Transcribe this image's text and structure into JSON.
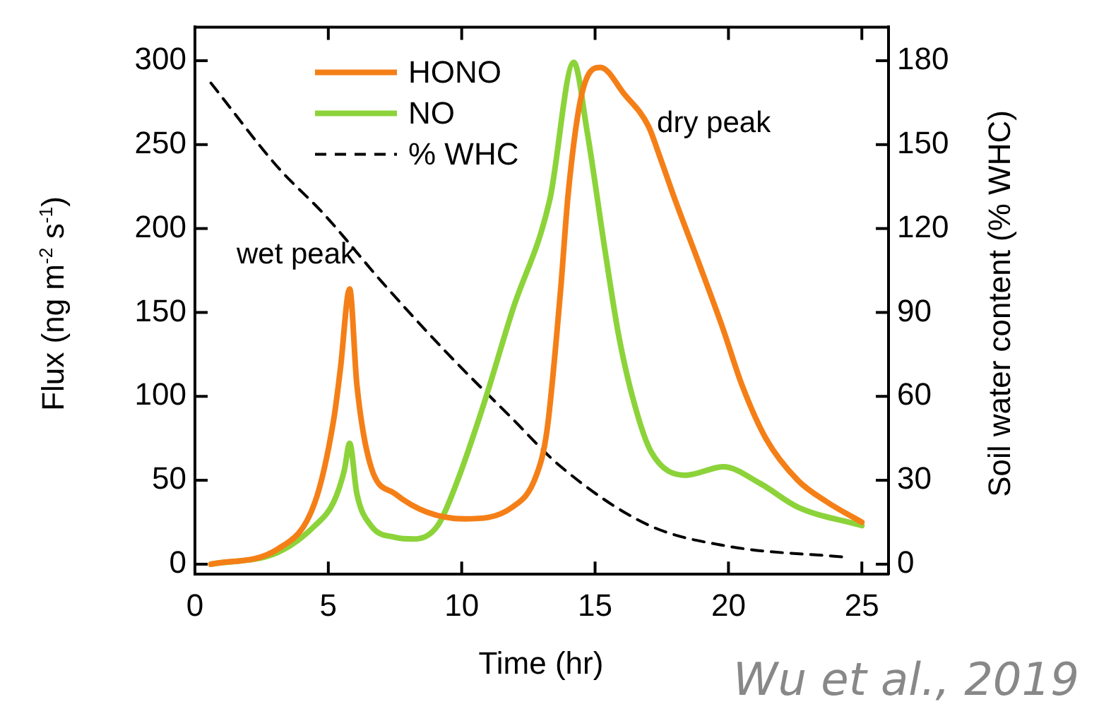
{
  "chart_data": {
    "type": "line",
    "xlabel": "Time (hr)",
    "ylabel": "Flux (ng m$^{-2}$ s$^{-1}$)",
    "y2label": "Soil water content (% WHC)",
    "xlim": [
      0,
      26
    ],
    "xticks": [
      0,
      5,
      10,
      15,
      20,
      25
    ],
    "ylim": [
      -6,
      320
    ],
    "yticks": [
      0,
      50,
      100,
      150,
      200,
      250,
      300
    ],
    "y2lim": [
      -3.6,
      192
    ],
    "y2ticks": [
      0,
      30,
      60,
      90,
      120,
      150,
      180
    ],
    "legend": "top left",
    "marker": "none",
    "grid": false,
    "series": [
      {
        "name": "HONO",
        "color": "#f57f17",
        "x": [
          0.6,
          3.1,
          4.5,
          5.2,
          5.45,
          5.8,
          6.07,
          6.6,
          7.5,
          8.7,
          10.1,
          11.9,
          12.8,
          13.2,
          13.7,
          14.0,
          14.5,
          15.2,
          16.1,
          17.0,
          17.4,
          18.0,
          18.9,
          19.8,
          20.5,
          21.4,
          22.6,
          23.7,
          25
        ],
        "values": [
          0,
          9,
          37,
          86,
          116,
          164,
          107,
          58,
          42,
          31,
          27,
          34,
          53,
          80,
          162,
          222,
          280,
          296,
          280,
          261,
          244,
          217,
          179,
          140,
          107,
          75,
          50,
          37,
          25
        ]
      },
      {
        "name": "NO",
        "color": "#8cd33a",
        "x": [
          0.6,
          3.1,
          4.5,
          5.2,
          5.6,
          5.8,
          6.07,
          6.6,
          7.5,
          8.2,
          9.1,
          9.8,
          10.8,
          11.9,
          13.3,
          14.2,
          14.7,
          15.4,
          15.9,
          16.5,
          17.1,
          18.4,
          19.8,
          21.2,
          22.6,
          25
        ],
        "values": [
          0,
          7,
          23,
          37,
          56,
          72,
          42,
          23,
          16,
          15,
          23,
          48,
          94,
          151,
          217,
          299,
          258,
          184,
          135,
          94,
          67,
          53,
          58,
          48,
          34,
          23
        ]
      },
      {
        "name": "% WHC",
        "color": "#000000",
        "axis": "y2",
        "line_style": "dashed",
        "x": [
          0.6,
          3.1,
          4.85,
          7.0,
          9.4,
          11.9,
          13.7,
          17.0,
          20.0,
          24.4
        ],
        "values": [
          172,
          142,
          125,
          101,
          76,
          52,
          35,
          14,
          6.4,
          2.5
        ]
      }
    ],
    "annotations": [
      {
        "text": "wet peak",
        "x": 5.8,
        "y": 164
      },
      {
        "text": "dry peak",
        "x": 15.2,
        "y": 296
      },
      "Wu et al., 2019"
    ]
  }
}
